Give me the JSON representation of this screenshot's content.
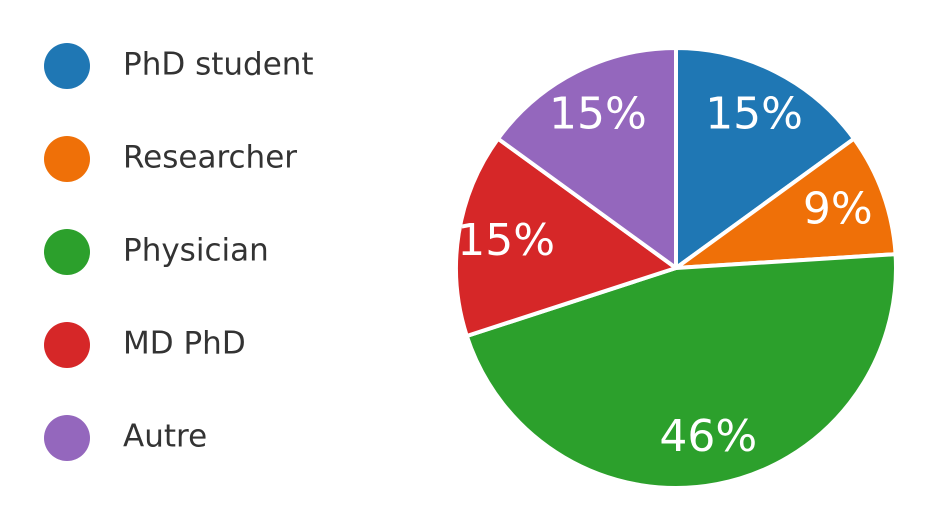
{
  "chart_data": {
    "type": "pie",
    "categories": [
      "PhD student",
      "Researcher",
      "Physician",
      "MD PhD",
      "Autre"
    ],
    "values": [
      15,
      9,
      46,
      15,
      15
    ],
    "value_labels": [
      "15%",
      "9%",
      "46%",
      "15%",
      "15%"
    ],
    "colors": [
      "#1f77b4",
      "#ef7008",
      "#2ca02c",
      "#d62728",
      "#9467bd"
    ],
    "legend": "left"
  }
}
